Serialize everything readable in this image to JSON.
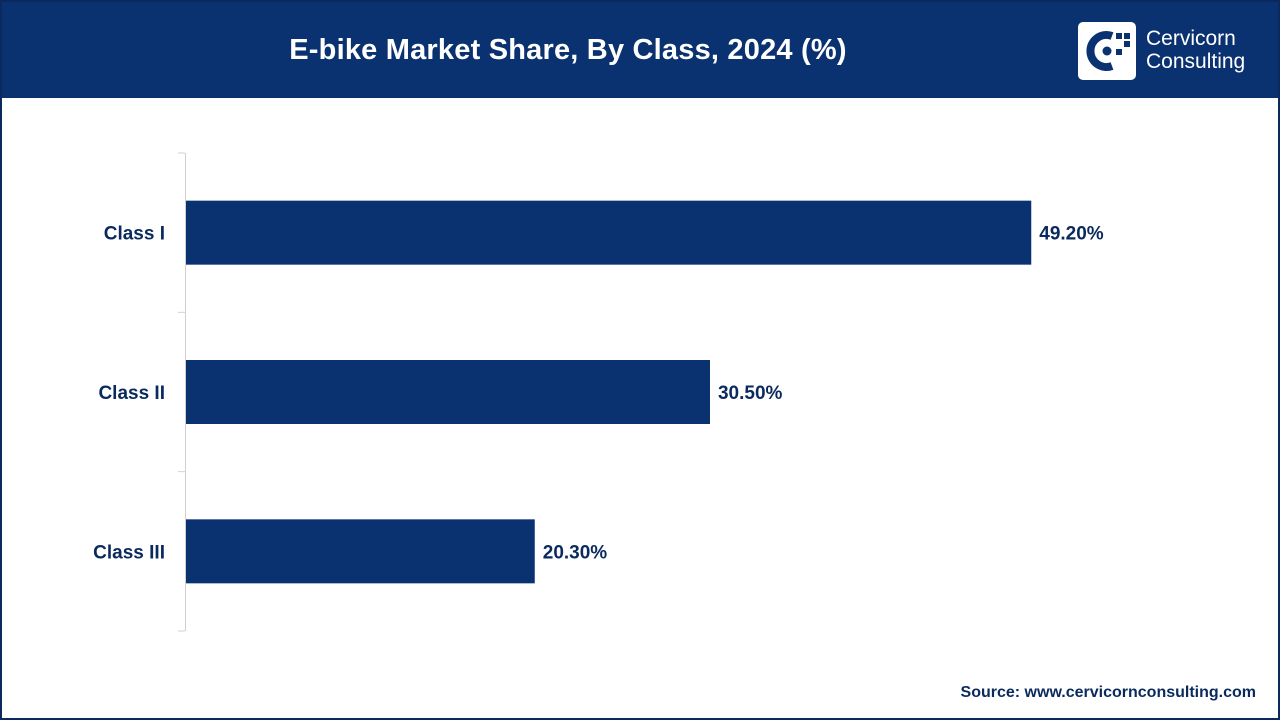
{
  "header": {
    "title": "E-bike Market Share, By Class, 2024 (%)",
    "brand_line1": "Cervicorn",
    "brand_line2": "Consulting",
    "brand_color": "#0a3170"
  },
  "footer": {
    "source": "Source: www.cervicornconsulting.com"
  },
  "chart_data": {
    "type": "bar",
    "orientation": "horizontal",
    "categories": [
      "Class I",
      "Class II",
      "Class III"
    ],
    "values": [
      49.2,
      30.5,
      20.3
    ],
    "value_labels": [
      "49.20%",
      "30.50%",
      "20.30%"
    ],
    "title": "E-bike Market Share, By Class, 2024 (%)",
    "xlabel": "",
    "ylabel": "",
    "xlim": [
      0,
      60
    ],
    "grid": false,
    "bar_color": "#0a3170"
  }
}
